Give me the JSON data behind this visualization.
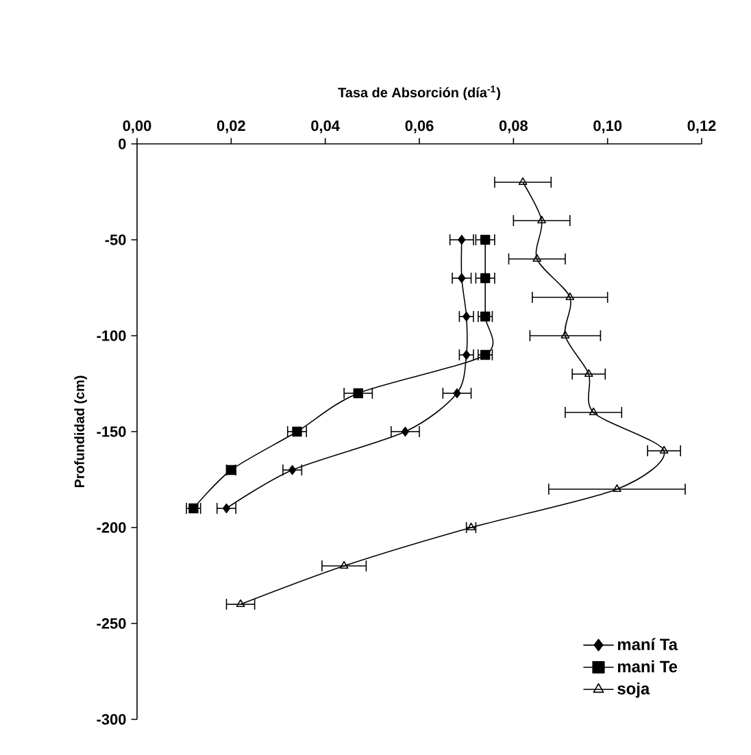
{
  "chart_data": {
    "type": "line",
    "xlabel": "Tasa de Absorción (día$^{-1}$)",
    "ylabel": "Profundidad (cm)",
    "xlim": [
      0,
      0.12
    ],
    "xticks": [
      {
        "value": 0,
        "label": "0,00"
      },
      {
        "value": 0.02,
        "label": "0,02"
      },
      {
        "value": 0.04,
        "label": "0,04"
      },
      {
        "value": 0.06,
        "label": "0,06"
      },
      {
        "value": 0.08,
        "label": "0,08"
      },
      {
        "value": 0.1,
        "label": "0,10"
      },
      {
        "value": 0.12,
        "label": "0,12"
      }
    ],
    "ylim": [
      -300,
      0
    ],
    "yticks": [
      -300,
      -250,
      -200,
      -150,
      -100,
      -50,
      0
    ],
    "grid": false,
    "legend": "bottom right",
    "series": [
      {
        "name": "maní Ta",
        "color": "#000000",
        "marker": "diamond",
        "x": [
          0.069,
          0.069,
          0.07,
          0.07,
          0.068,
          0.057,
          0.033,
          0.019
        ],
        "values": [
          -50,
          -70,
          -90,
          -110,
          -130,
          -150,
          -170,
          -190
        ],
        "xerrors": [
          0.0025,
          0.002,
          0.0015,
          0.0015,
          0.003,
          0.003,
          0.002,
          0.002
        ]
      },
      {
        "name": "mani Te",
        "color": "#000000",
        "marker": "square",
        "x": [
          0.074,
          0.074,
          0.074,
          0.074,
          0.047,
          0.034,
          0.02,
          0.012
        ],
        "values": [
          -50,
          -70,
          -90,
          -110,
          -130,
          -150,
          -170,
          -190
        ],
        "xerrors": [
          0.002,
          0.002,
          0.0015,
          0.0015,
          0.003,
          0.002,
          0.001,
          0.0015
        ]
      },
      {
        "name": "soja",
        "color": "#000000",
        "marker": "triangle",
        "x": [
          0.082,
          0.086,
          0.085,
          0.092,
          0.091,
          0.096,
          0.097,
          0.112,
          0.102,
          0.071,
          0.044,
          0.022
        ],
        "values": [
          -20,
          -40,
          -60,
          -80,
          -100,
          -120,
          -140,
          -160,
          -180,
          -200,
          -220,
          -240
        ],
        "xerrors": [
          0.006,
          0.006,
          0.006,
          0.008,
          0.0075,
          0.0035,
          0.006,
          0.0035,
          0.0145,
          0.001,
          0.0047,
          0.003
        ]
      }
    ]
  }
}
